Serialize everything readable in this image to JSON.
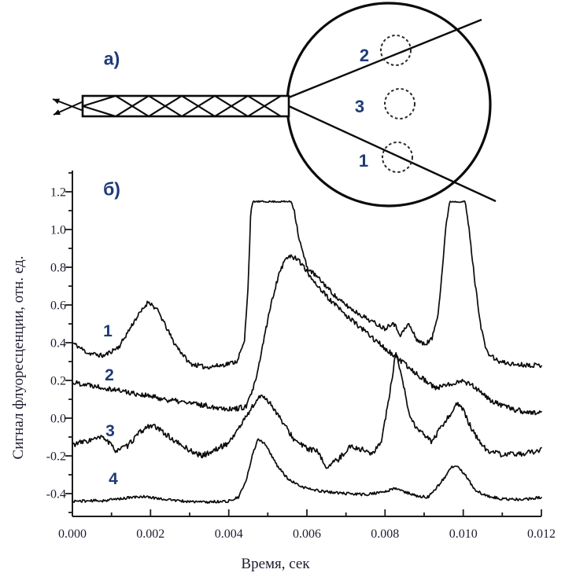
{
  "figure": {
    "background": "#ffffff",
    "panel_a_label": "а)",
    "panel_b_label": "б)"
  },
  "colors": {
    "ink": "#0b0b0b",
    "axis": "#1c1c1c",
    "tick_text": "#1c1c30",
    "blue_label": "#1e3a78",
    "dashed_spot": "#2a2a2a"
  },
  "diagram": {
    "description": "fiber probe with crisscross braid, two crossed input arrows, beam lines opening into a circular chamber with three dashed measurement spots",
    "spot_labels": [
      "2",
      "3",
      "1"
    ]
  },
  "chart_data": {
    "type": "line",
    "title": "",
    "xlabel": "Время, сек",
    "ylabel": "Сигнал флуоресценции, отн. ед.",
    "xlim_ms": [
      0,
      12
    ],
    "ylim": [
      -0.52,
      1.31
    ],
    "x_tick_values_ms": [
      0,
      2,
      4,
      6,
      8,
      10,
      12
    ],
    "x_tick_labels": [
      "0.000",
      "0.002",
      "0.004",
      "0.006",
      "0.008",
      "0.010",
      "0.012"
    ],
    "x_minor_step_ms": 1,
    "y_tick_values": [
      1.2,
      1.0,
      0.8,
      0.6,
      0.4,
      0.2,
      0.0,
      -0.2,
      -0.4
    ],
    "y_tick_labels": [
      "1.2",
      "1.0",
      "0.8",
      "0.6",
      "0.4",
      "0.2",
      "0.0",
      "-0.2",
      "-0.4"
    ],
    "y_minor_step": 0.1,
    "grid": false,
    "legend": "inline curve numbers 1-4",
    "series": [
      {
        "name": "1",
        "seed": 11,
        "noise": 0.012,
        "points": [
          [
            0,
            0.4
          ],
          [
            0.4,
            0.345
          ],
          [
            0.8,
            0.33
          ],
          [
            1.2,
            0.38
          ],
          [
            1.6,
            0.52
          ],
          [
            1.95,
            0.62
          ],
          [
            2.2,
            0.565
          ],
          [
            2.6,
            0.4
          ],
          [
            3.0,
            0.29
          ],
          [
            3.4,
            0.27
          ],
          [
            3.8,
            0.28
          ],
          [
            4.2,
            0.3
          ],
          [
            4.4,
            0.4
          ],
          [
            4.5,
            0.72
          ],
          [
            4.56,
            1.08
          ],
          [
            4.62,
            1.148,
            0.004
          ],
          [
            5.6,
            1.148,
            0.004
          ],
          [
            5.68,
            1.1
          ],
          [
            5.8,
            0.95
          ],
          [
            6.0,
            0.8
          ],
          [
            6.4,
            0.72
          ],
          [
            6.8,
            0.63
          ],
          [
            7.2,
            0.57
          ],
          [
            7.6,
            0.52
          ],
          [
            8.0,
            0.475
          ],
          [
            8.2,
            0.51
          ],
          [
            8.4,
            0.44
          ],
          [
            8.6,
            0.5
          ],
          [
            8.8,
            0.42
          ],
          [
            9.0,
            0.39
          ],
          [
            9.2,
            0.42
          ],
          [
            9.35,
            0.55
          ],
          [
            9.45,
            0.75
          ],
          [
            9.55,
            1.0
          ],
          [
            9.65,
            1.148,
            0.004
          ],
          [
            10.05,
            1.148,
            0.004
          ],
          [
            10.15,
            1.0
          ],
          [
            10.3,
            0.72
          ],
          [
            10.45,
            0.49
          ],
          [
            10.6,
            0.35
          ],
          [
            10.9,
            0.3
          ],
          [
            11.3,
            0.285
          ],
          [
            12,
            0.28
          ]
        ]
      },
      {
        "name": "2",
        "seed": 22,
        "noise": 0.014,
        "points": [
          [
            0,
            0.19
          ],
          [
            0.5,
            0.175
          ],
          [
            1,
            0.155
          ],
          [
            1.5,
            0.135
          ],
          [
            2,
            0.115
          ],
          [
            2.5,
            0.095
          ],
          [
            3,
            0.08
          ],
          [
            3.6,
            0.06
          ],
          [
            4.1,
            0.048
          ],
          [
            4.45,
            0.06
          ],
          [
            4.7,
            0.2
          ],
          [
            4.9,
            0.42
          ],
          [
            5.1,
            0.62
          ],
          [
            5.3,
            0.78
          ],
          [
            5.5,
            0.858
          ],
          [
            5.75,
            0.85
          ],
          [
            6.0,
            0.775
          ],
          [
            6.5,
            0.645
          ],
          [
            7.0,
            0.545
          ],
          [
            7.4,
            0.475
          ],
          [
            7.8,
            0.405
          ],
          [
            8.2,
            0.335
          ],
          [
            8.6,
            0.27
          ],
          [
            9.0,
            0.205
          ],
          [
            9.3,
            0.158
          ],
          [
            9.6,
            0.175
          ],
          [
            9.9,
            0.2
          ],
          [
            10.2,
            0.182
          ],
          [
            10.5,
            0.125
          ],
          [
            10.8,
            0.082
          ],
          [
            11.2,
            0.052
          ],
          [
            11.6,
            0.032
          ],
          [
            12,
            0.025
          ]
        ]
      },
      {
        "name": "3",
        "seed": 33,
        "noise": 0.014,
        "points": [
          [
            0,
            -0.14
          ],
          [
            0.5,
            -0.115
          ],
          [
            0.8,
            -0.1
          ],
          [
            1.1,
            -0.17
          ],
          [
            1.4,
            -0.15
          ],
          [
            1.7,
            -0.08
          ],
          [
            2.0,
            -0.035
          ],
          [
            2.3,
            -0.07
          ],
          [
            2.6,
            -0.12
          ],
          [
            3.0,
            -0.17
          ],
          [
            3.3,
            -0.2
          ],
          [
            3.6,
            -0.175
          ],
          [
            4.0,
            -0.13
          ],
          [
            4.3,
            -0.04
          ],
          [
            4.6,
            0.06
          ],
          [
            4.85,
            0.125
          ],
          [
            5.1,
            0.07
          ],
          [
            5.4,
            -0.03
          ],
          [
            5.7,
            -0.12
          ],
          [
            6.0,
            -0.16
          ],
          [
            6.25,
            -0.175
          ],
          [
            6.5,
            -0.26
          ],
          [
            6.8,
            -0.22
          ],
          [
            7.1,
            -0.15
          ],
          [
            7.4,
            -0.165
          ],
          [
            7.7,
            -0.19
          ],
          [
            7.9,
            -0.12
          ],
          [
            8.1,
            0.1
          ],
          [
            8.27,
            0.34
          ],
          [
            8.45,
            0.2
          ],
          [
            8.6,
            0.03
          ],
          [
            8.8,
            -0.055
          ],
          [
            9.0,
            -0.09
          ],
          [
            9.2,
            -0.125
          ],
          [
            9.4,
            -0.06
          ],
          [
            9.6,
            0.0
          ],
          [
            9.85,
            0.08
          ],
          [
            10.0,
            0.04
          ],
          [
            10.2,
            -0.05
          ],
          [
            10.4,
            -0.12
          ],
          [
            10.6,
            -0.17
          ],
          [
            11.0,
            -0.195
          ],
          [
            11.4,
            -0.19
          ],
          [
            11.8,
            -0.18
          ],
          [
            12,
            -0.17
          ]
        ]
      },
      {
        "name": "4",
        "seed": 44,
        "noise": 0.007,
        "points": [
          [
            0,
            -0.44
          ],
          [
            0.8,
            -0.437
          ],
          [
            1.3,
            -0.425
          ],
          [
            1.8,
            -0.415
          ],
          [
            2.3,
            -0.428
          ],
          [
            2.8,
            -0.44
          ],
          [
            3.4,
            -0.445
          ],
          [
            4.0,
            -0.44
          ],
          [
            4.25,
            -0.42
          ],
          [
            4.45,
            -0.33
          ],
          [
            4.6,
            -0.2
          ],
          [
            4.75,
            -0.108
          ],
          [
            4.95,
            -0.14
          ],
          [
            5.2,
            -0.24
          ],
          [
            5.5,
            -0.32
          ],
          [
            5.8,
            -0.36
          ],
          [
            6.2,
            -0.382
          ],
          [
            6.6,
            -0.392
          ],
          [
            7.0,
            -0.4
          ],
          [
            7.5,
            -0.405
          ],
          [
            8.0,
            -0.39
          ],
          [
            8.25,
            -0.372
          ],
          [
            8.5,
            -0.39
          ],
          [
            8.8,
            -0.413
          ],
          [
            9.1,
            -0.418
          ],
          [
            9.4,
            -0.35
          ],
          [
            9.7,
            -0.262
          ],
          [
            9.85,
            -0.252
          ],
          [
            10.05,
            -0.3
          ],
          [
            10.3,
            -0.38
          ],
          [
            10.6,
            -0.413
          ],
          [
            11.0,
            -0.428
          ],
          [
            11.5,
            -0.432
          ],
          [
            12,
            -0.42
          ]
        ]
      }
    ]
  }
}
